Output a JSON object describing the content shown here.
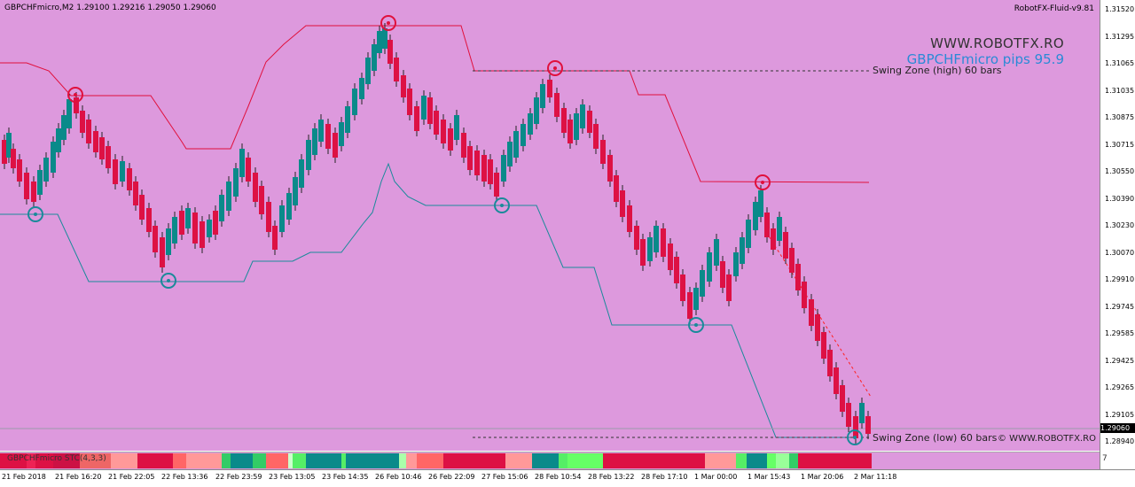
{
  "window": {
    "symbol_info": "GBPCHFmicro,M2  1.29100 1.29216 1.29050 1.29060",
    "ea_label": "RobotFX-Fluid-v9.81",
    "site": "WWW.ROBOTFX.RO",
    "pips_label": "GBPCHFmicro pips 95.9",
    "zone_high": "Swing Zone (high) 60 bars",
    "zone_low": "Swing Zone (low) 60 bars",
    "copyright": "© WWW.ROBOTFX.RO",
    "indicator_label": "GBPCHFmicro STC(4,3,3)",
    "indicator_tail": "7",
    "current_price": "1.29060"
  },
  "price_axis": [
    "1.31520",
    "1.31295",
    "1.31065",
    "1.31035",
    "1.30875",
    "1.30715",
    "1.30550",
    "1.30390",
    "1.30230",
    "1.30070",
    "1.29910",
    "1.29745",
    "1.29585",
    "1.29425",
    "1.29265",
    "1.29105",
    "1.28940"
  ],
  "time_axis": [
    "21 Feb 2018",
    "21 Feb 16:20",
    "21 Feb 22:05",
    "22 Feb 13:36",
    "22 Feb 23:59",
    "23 Feb 13:05",
    "23 Feb 14:35",
    "26 Feb 10:46",
    "26 Feb 22:09",
    "27 Feb 15:06",
    "28 Feb 10:54",
    "28 Feb 13:22",
    "28 Feb 17:10",
    "1 Mar 00:00",
    "1 Mar 15:43",
    "1 Mar 20:06",
    "2 Mar 11:18"
  ],
  "colors": {
    "background": "#dd99dd",
    "bull": "#0a8a8a",
    "bear": "#dd1144",
    "upper_line": "#e0103c",
    "lower_line": "#1a8a9a"
  }
}
